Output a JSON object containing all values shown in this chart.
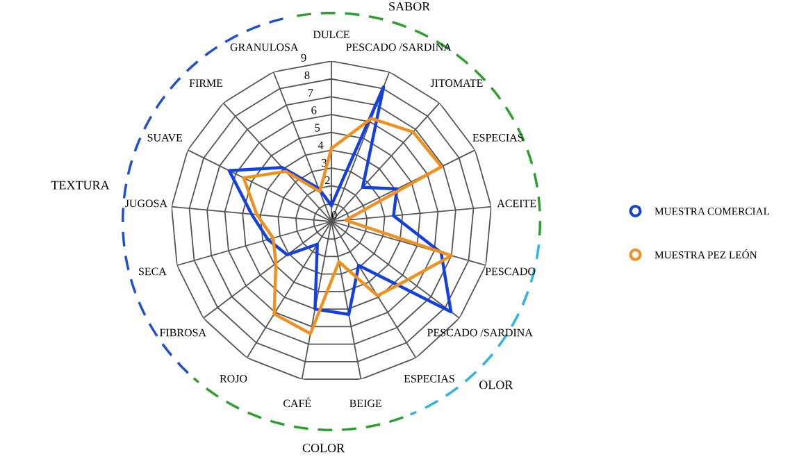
{
  "chart_data": {
    "type": "radar",
    "categories": [
      "DULCE",
      "PESCADO /SARDINA",
      "JITOMATE",
      "ESPECIAS",
      "ACEITE",
      "PESCADO",
      "PESCADO /SARDINA",
      "ESPECIAS",
      "BEIGE",
      "CAFÉ",
      "ROJO",
      "FIBROSA",
      "SECA",
      "JUGOSA",
      "SUAVE",
      "FIRME",
      "GRANULOSA"
    ],
    "series": [
      {
        "name": "MUESTRA COMERCIAL",
        "color": "#1440e0",
        "values": [
          0.9,
          8.1,
          2.6,
          4.1,
          3.5,
          6.4,
          8.4,
          2.9,
          5.3,
          5.0,
          1.5,
          3.1,
          3.7,
          4.5,
          6.4,
          4.1,
          2.0
        ]
      },
      {
        "name": "MUESTRA PEZ LEÓN",
        "color": "#f0901e",
        "values": [
          4.1,
          6.2,
          6.8,
          6.9,
          0.8,
          7.0,
          5.4,
          4.9,
          2.3,
          6.4,
          6.1,
          3.9,
          3.4,
          4.2,
          5.5,
          3.8,
          1.8
        ]
      }
    ],
    "ylim": [
      0,
      9
    ],
    "yticks": [
      0,
      1,
      2,
      3,
      4,
      5,
      6,
      7,
      8,
      9
    ],
    "grid": true,
    "legend": "right",
    "marker": "none",
    "line_style": "solid",
    "annotations": [
      "SABOR",
      "OLOR",
      "COLOR",
      "TEXTURA"
    ]
  }
}
